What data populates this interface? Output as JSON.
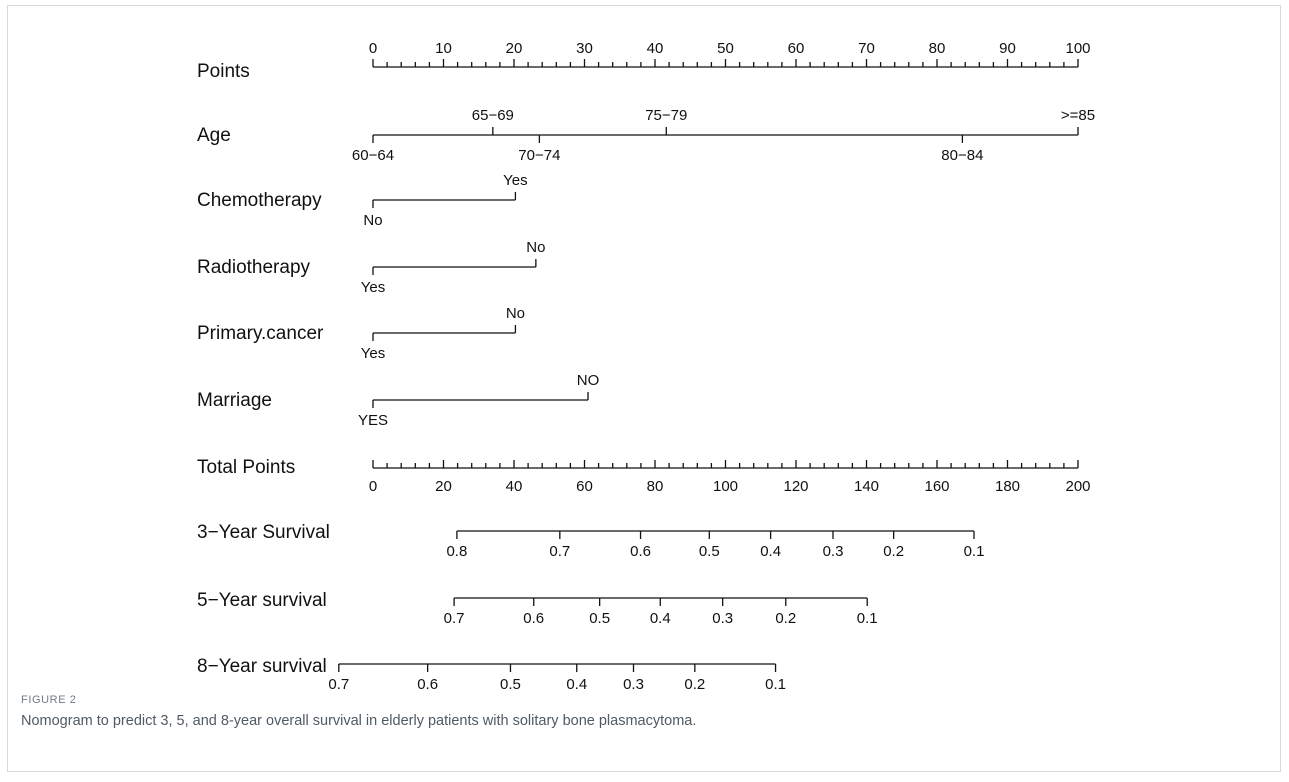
{
  "figure": {
    "label": "FIGURE 2",
    "caption": "Nomogram to predict 3, 5, and 8-year overall survival in elderly patients with solitary bone plasmacytoma."
  },
  "chart_data": {
    "type": "nomogram",
    "rows": [
      {
        "name": "Points",
        "kind": "scale",
        "range": [
          0,
          100
        ],
        "labels": [
          0,
          10,
          20,
          30,
          40,
          50,
          60,
          70,
          80,
          90,
          100
        ],
        "minor_step": 2,
        "label_side": "above"
      },
      {
        "name": "Age",
        "kind": "categorical",
        "levels": [
          {
            "label": "60−64",
            "points": 0,
            "side": "below"
          },
          {
            "label": "65−69",
            "points": 17,
            "side": "above"
          },
          {
            "label": "70−74",
            "points": 23.6,
            "side": "below"
          },
          {
            "label": "75−79",
            "points": 41.6,
            "side": "above"
          },
          {
            "label": "80−84",
            "points": 83.6,
            "side": "below"
          },
          {
            "label": ">=85",
            "points": 100,
            "side": "above"
          }
        ]
      },
      {
        "name": "Chemotherapy",
        "kind": "categorical",
        "levels": [
          {
            "label": "No",
            "points": 0,
            "side": "below"
          },
          {
            "label": "Yes",
            "points": 20.2,
            "side": "above"
          }
        ]
      },
      {
        "name": "Radiotherapy",
        "kind": "categorical",
        "levels": [
          {
            "label": "Yes",
            "points": 0,
            "side": "below"
          },
          {
            "label": "No",
            "points": 23.1,
            "side": "above"
          }
        ]
      },
      {
        "name": "Primary.cancer",
        "kind": "categorical",
        "levels": [
          {
            "label": "Yes",
            "points": 0,
            "side": "below"
          },
          {
            "label": "No",
            "points": 20.2,
            "side": "above"
          }
        ]
      },
      {
        "name": "Marriage",
        "kind": "categorical",
        "levels": [
          {
            "label": "YES",
            "points": 0,
            "side": "below"
          },
          {
            "label": "NO",
            "points": 30.5,
            "side": "above"
          }
        ]
      },
      {
        "name": "Total Points",
        "kind": "scale",
        "range": [
          0,
          200
        ],
        "labels": [
          0,
          20,
          40,
          60,
          80,
          100,
          120,
          140,
          160,
          180,
          200
        ],
        "minor_step": 4,
        "label_side": "below"
      },
      {
        "name": "3−Year Survival",
        "kind": "probability",
        "line_range": [
          23.8,
          170.5
        ],
        "ticks": [
          {
            "label": "0.8",
            "total_points": 23.8
          },
          {
            "label": "0.7",
            "total_points": 53.0
          },
          {
            "label": "0.6",
            "total_points": 75.9
          },
          {
            "label": "0.5",
            "total_points": 95.4
          },
          {
            "label": "0.4",
            "total_points": 112.8
          },
          {
            "label": "0.3",
            "total_points": 130.5
          },
          {
            "label": "0.2",
            "total_points": 147.7
          },
          {
            "label": "0.1",
            "total_points": 170.5
          }
        ]
      },
      {
        "name": "5−Year survival",
        "kind": "probability",
        "line_range": [
          23.0,
          140.2
        ],
        "ticks": [
          {
            "label": "0.7",
            "total_points": 23.0
          },
          {
            "label": "0.6",
            "total_points": 45.6
          },
          {
            "label": "0.5",
            "total_points": 64.3
          },
          {
            "label": "0.4",
            "total_points": 81.5
          },
          {
            "label": "0.3",
            "total_points": 99.2
          },
          {
            "label": "0.2",
            "total_points": 117.1
          },
          {
            "label": "0.1",
            "total_points": 140.2
          }
        ]
      },
      {
        "name": "8−Year survival",
        "kind": "probability",
        "line_range": [
          -9.7,
          114.2
        ],
        "ticks": [
          {
            "label": "0.7",
            "total_points": -9.7
          },
          {
            "label": "0.6",
            "total_points": 15.5
          },
          {
            "label": "0.5",
            "total_points": 39.0
          },
          {
            "label": "0.4",
            "total_points": 57.8
          },
          {
            "label": "0.3",
            "total_points": 73.9
          },
          {
            "label": "0.2",
            "total_points": 91.3
          },
          {
            "label": "0.1",
            "total_points": 114.2
          }
        ]
      }
    ]
  }
}
